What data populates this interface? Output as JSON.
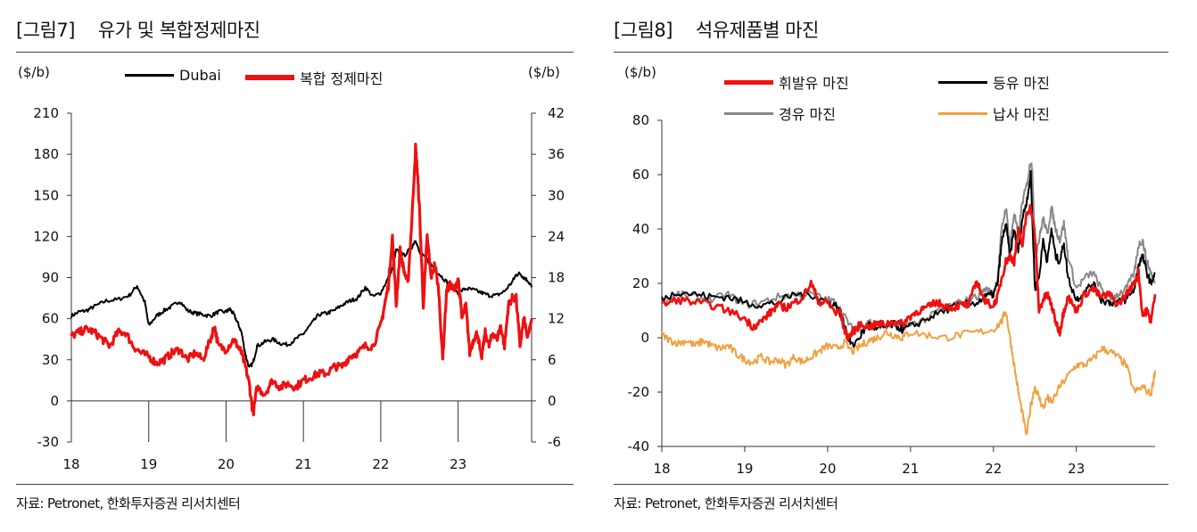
{
  "left_panel": {
    "fig_label": "[그림7]",
    "title": "유가 및 복합정제마진",
    "source": "자료: Petronet, 한화투자증권 리서치센터",
    "unit_left": "($/b)",
    "unit_right": "($/b)"
  },
  "right_panel": {
    "fig_label": "[그림8]",
    "title": "석유제품별 마진",
    "source": "자료: Petronet, 한화투자증권 리서치센터",
    "unit_left": "($/b)"
  },
  "chart_data": [
    {
      "type": "line",
      "x_ticks": [
        "18",
        "19",
        "20",
        "21",
        "22",
        "23"
      ],
      "y_left": {
        "ylim": [
          -30,
          210
        ],
        "ticks": [
          -30,
          0,
          30,
          60,
          90,
          120,
          150,
          180,
          210
        ],
        "tick_labels": [
          "-30",
          "0",
          "30",
          "60",
          "90",
          "120",
          "150",
          "180",
          "210"
        ]
      },
      "y_right": {
        "ylim": [
          -6,
          42
        ],
        "ticks": [
          -6,
          0,
          6,
          12,
          18,
          24,
          30,
          36,
          42
        ],
        "tick_labels": [
          "-6",
          "0",
          "6",
          "12",
          "18",
          "24",
          "30",
          "36",
          "42"
        ]
      },
      "xlim": [
        2018.0,
        2023.95
      ],
      "legend_placement": "top-center",
      "grid": false,
      "series": [
        {
          "name": "Dubai",
          "axis": "left",
          "color": "#000000",
          "x": [
            2018.0,
            2018.1,
            2018.2,
            2018.3,
            2018.45,
            2018.6,
            2018.75,
            2018.85,
            2018.95,
            2019.0,
            2019.1,
            2019.2,
            2019.3,
            2019.4,
            2019.5,
            2019.6,
            2019.7,
            2019.8,
            2019.9,
            2020.0,
            2020.05,
            2020.1,
            2020.15,
            2020.2,
            2020.25,
            2020.3,
            2020.35,
            2020.4,
            2020.5,
            2020.6,
            2020.7,
            2020.8,
            2020.9,
            2021.0,
            2021.1,
            2021.2,
            2021.3,
            2021.4,
            2021.5,
            2021.6,
            2021.7,
            2021.8,
            2021.9,
            2022.0,
            2022.1,
            2022.15,
            2022.2,
            2022.3,
            2022.4,
            2022.45,
            2022.5,
            2022.6,
            2022.7,
            2022.8,
            2022.9,
            2023.0,
            2023.1,
            2023.2,
            2023.3,
            2023.4,
            2023.5,
            2023.6,
            2023.7,
            2023.75,
            2023.8,
            2023.85,
            2023.9,
            2023.95
          ],
          "y": [
            62,
            65,
            66,
            69,
            73,
            74,
            77,
            84,
            72,
            55,
            62,
            66,
            69,
            73,
            66,
            64,
            63,
            62,
            65,
            65,
            67,
            63,
            57,
            50,
            34,
            24,
            28,
            40,
            43,
            45,
            42,
            41,
            45,
            49,
            56,
            63,
            64,
            66,
            70,
            73,
            75,
            83,
            76,
            79,
            90,
            96,
            110,
            106,
            112,
            118,
            108,
            103,
            96,
            90,
            84,
            79,
            82,
            81,
            79,
            77,
            77,
            80,
            87,
            92,
            93,
            90,
            88,
            83
          ]
        },
        {
          "name": "복합 정제마진",
          "axis": "right",
          "color": "#ee1111",
          "x": [
            2018.0,
            2018.1,
            2018.2,
            2018.3,
            2018.4,
            2018.5,
            2018.6,
            2018.7,
            2018.8,
            2018.9,
            2019.0,
            2019.1,
            2019.2,
            2019.3,
            2019.4,
            2019.5,
            2019.6,
            2019.7,
            2019.8,
            2019.85,
            2019.9,
            2020.0,
            2020.1,
            2020.15,
            2020.2,
            2020.25,
            2020.3,
            2020.35,
            2020.4,
            2020.5,
            2020.6,
            2020.7,
            2020.8,
            2020.9,
            2021.0,
            2021.1,
            2021.2,
            2021.3,
            2021.4,
            2021.5,
            2021.6,
            2021.7,
            2021.8,
            2021.9,
            2022.0,
            2022.05,
            2022.1,
            2022.15,
            2022.2,
            2022.25,
            2022.3,
            2022.35,
            2022.4,
            2022.45,
            2022.47,
            2022.5,
            2022.55,
            2022.6,
            2022.65,
            2022.7,
            2022.75,
            2022.8,
            2022.85,
            2022.9,
            2022.95,
            2023.0,
            2023.05,
            2023.1,
            2023.15,
            2023.2,
            2023.25,
            2023.3,
            2023.35,
            2023.4,
            2023.45,
            2023.5,
            2023.55,
            2023.6,
            2023.65,
            2023.7,
            2023.75,
            2023.8,
            2023.85,
            2023.9,
            2023.95
          ],
          "y": [
            9.5,
            10,
            10.5,
            10,
            9,
            8,
            10,
            10,
            8,
            7,
            6.5,
            5.5,
            6,
            7,
            7.5,
            6,
            7,
            6,
            9,
            11,
            8,
            7.5,
            9,
            8,
            7,
            5,
            2.5,
            -2,
            2,
            1,
            3,
            2,
            2.5,
            2,
            3,
            3.5,
            4,
            4,
            5,
            5,
            6.5,
            7,
            8,
            8,
            11,
            14,
            17,
            24,
            14,
            22,
            19,
            17,
            26,
            37,
            34,
            28,
            14,
            24,
            18,
            20,
            16,
            6,
            16,
            17,
            16,
            18,
            12,
            14,
            7,
            9,
            10,
            6,
            10,
            8,
            10,
            9,
            11,
            8,
            14,
            15,
            15,
            8,
            12,
            9,
            12
          ]
        }
      ]
    },
    {
      "type": "line",
      "x_ticks": [
        "18",
        "19",
        "20",
        "21",
        "22",
        "23"
      ],
      "y_left": {
        "ylim": [
          -40,
          80
        ],
        "ticks": [
          -40,
          -20,
          0,
          20,
          40,
          60,
          80
        ],
        "tick_labels": [
          "-40",
          "-20",
          "0",
          "20",
          "40",
          "60",
          "80"
        ]
      },
      "xlim": [
        2018.0,
        2023.95
      ],
      "legend_placement": "top",
      "grid": false,
      "series": [
        {
          "name": "휘발유 마진",
          "color": "#ee1111",
          "x": [
            2018.0,
            2018.2,
            2018.4,
            2018.6,
            2018.8,
            2019.0,
            2019.1,
            2019.2,
            2019.3,
            2019.4,
            2019.5,
            2019.6,
            2019.7,
            2019.8,
            2019.9,
            2020.0,
            2020.1,
            2020.15,
            2020.2,
            2020.25,
            2020.3,
            2020.4,
            2020.5,
            2020.6,
            2020.7,
            2020.8,
            2020.9,
            2021.0,
            2021.1,
            2021.2,
            2021.3,
            2021.4,
            2021.5,
            2021.6,
            2021.7,
            2021.8,
            2021.9,
            2022.0,
            2022.05,
            2022.1,
            2022.15,
            2022.2,
            2022.25,
            2022.3,
            2022.35,
            2022.4,
            2022.45,
            2022.5,
            2022.55,
            2022.6,
            2022.65,
            2022.7,
            2022.75,
            2022.8,
            2022.85,
            2022.9,
            2023.0,
            2023.1,
            2023.2,
            2023.3,
            2023.4,
            2023.5,
            2023.6,
            2023.7,
            2023.75,
            2023.8,
            2023.85,
            2023.9,
            2023.95
          ],
          "y": [
            12,
            14,
            13,
            12,
            10,
            7,
            4,
            6,
            9,
            12,
            11,
            13,
            15,
            20,
            13,
            13,
            9,
            10,
            3,
            0,
            2,
            5,
            4,
            5,
            5,
            6,
            5,
            8,
            10,
            11,
            13,
            12,
            11,
            12,
            12,
            21,
            13,
            12,
            15,
            22,
            28,
            30,
            28,
            40,
            34,
            46,
            48,
            38,
            10,
            14,
            16,
            12,
            6,
            2,
            10,
            15,
            10,
            16,
            18,
            15,
            16,
            12,
            16,
            20,
            24,
            8,
            10,
            6,
            16
          ]
        },
        {
          "name": "등유 마진",
          "color": "#000000",
          "x": [
            2018.0,
            2018.2,
            2018.4,
            2018.6,
            2018.8,
            2019.0,
            2019.2,
            2019.4,
            2019.6,
            2019.8,
            2020.0,
            2020.1,
            2020.15,
            2020.2,
            2020.25,
            2020.3,
            2020.4,
            2020.5,
            2020.6,
            2020.7,
            2020.8,
            2020.9,
            2021.0,
            2021.2,
            2021.4,
            2021.6,
            2021.8,
            2021.9,
            2022.0,
            2022.05,
            2022.1,
            2022.15,
            2022.2,
            2022.25,
            2022.3,
            2022.35,
            2022.4,
            2022.45,
            2022.5,
            2022.55,
            2022.6,
            2022.65,
            2022.7,
            2022.75,
            2022.8,
            2022.85,
            2022.9,
            2023.0,
            2023.1,
            2023.2,
            2023.3,
            2023.4,
            2023.5,
            2023.6,
            2023.7,
            2023.75,
            2023.8,
            2023.85,
            2023.9,
            2023.95
          ],
          "y": [
            14,
            17,
            16,
            15,
            15,
            13,
            12,
            13,
            16,
            16,
            13,
            12,
            9,
            5,
            0,
            -3,
            1,
            5,
            3,
            4,
            5,
            3,
            4,
            7,
            10,
            12,
            13,
            15,
            16,
            20,
            35,
            42,
            30,
            40,
            32,
            44,
            50,
            60,
            18,
            22,
            36,
            28,
            40,
            30,
            28,
            35,
            22,
            14,
            17,
            20,
            14,
            13,
            13,
            14,
            18,
            27,
            30,
            24,
            20,
            24
          ]
        },
        {
          "name": "경유 마진",
          "color": "#888888",
          "x": [
            2018.0,
            2018.2,
            2018.4,
            2018.6,
            2018.8,
            2019.0,
            2019.2,
            2019.4,
            2019.6,
            2019.8,
            2020.0,
            2020.1,
            2020.2,
            2020.3,
            2020.4,
            2020.5,
            2020.6,
            2020.7,
            2020.8,
            2020.9,
            2021.0,
            2021.2,
            2021.4,
            2021.6,
            2021.8,
            2021.9,
            2022.0,
            2022.05,
            2022.1,
            2022.15,
            2022.2,
            2022.25,
            2022.3,
            2022.35,
            2022.4,
            2022.45,
            2022.47,
            2022.5,
            2022.55,
            2022.6,
            2022.65,
            2022.7,
            2022.75,
            2022.8,
            2022.85,
            2022.9,
            2023.0,
            2023.1,
            2023.2,
            2023.3,
            2023.4,
            2023.5,
            2023.6,
            2023.7,
            2023.75,
            2023.8,
            2023.85,
            2023.9,
            2023.95
          ],
          "y": [
            13,
            16,
            15,
            14,
            16,
            12,
            13,
            15,
            16,
            16,
            14,
            13,
            8,
            3,
            3,
            6,
            5,
            4,
            5,
            4,
            5,
            7,
            11,
            13,
            15,
            18,
            16,
            22,
            40,
            48,
            34,
            46,
            38,
            50,
            56,
            65,
            62,
            30,
            36,
            44,
            38,
            48,
            40,
            36,
            42,
            30,
            18,
            22,
            24,
            18,
            14,
            16,
            18,
            24,
            34,
            36,
            28,
            24,
            20
          ]
        },
        {
          "name": "납사 마진",
          "color": "#f2a040",
          "x": [
            2018.0,
            2018.1,
            2018.2,
            2018.3,
            2018.4,
            2018.5,
            2018.6,
            2018.7,
            2018.8,
            2018.9,
            2019.0,
            2019.1,
            2019.2,
            2019.3,
            2019.4,
            2019.5,
            2019.6,
            2019.7,
            2019.8,
            2019.9,
            2020.0,
            2020.1,
            2020.2,
            2020.3,
            2020.4,
            2020.5,
            2020.6,
            2020.7,
            2020.8,
            2020.9,
            2021.0,
            2021.2,
            2021.4,
            2021.6,
            2021.8,
            2022.0,
            2022.1,
            2022.15,
            2022.2,
            2022.25,
            2022.3,
            2022.35,
            2022.4,
            2022.45,
            2022.5,
            2022.55,
            2022.6,
            2022.65,
            2022.7,
            2022.8,
            2022.9,
            2023.0,
            2023.1,
            2023.2,
            2023.3,
            2023.4,
            2023.5,
            2023.6,
            2023.7,
            2023.8,
            2023.9,
            2023.95
          ],
          "y": [
            1,
            -1,
            -2,
            -1,
            -3,
            -1,
            -3,
            -4,
            -3,
            -6,
            -8,
            -9,
            -7,
            -9,
            -8,
            -10,
            -7,
            -9,
            -7,
            -5,
            -3,
            -4,
            -2,
            -5,
            -3,
            -1,
            0,
            2,
            1,
            0,
            2,
            1,
            0,
            1,
            2,
            3,
            6,
            10,
            0,
            -10,
            -20,
            -28,
            -36,
            -25,
            -18,
            -22,
            -26,
            -22,
            -24,
            -18,
            -14,
            -10,
            -10,
            -8,
            -4,
            -5,
            -7,
            -10,
            -20,
            -18,
            -21,
            -12
          ]
        }
      ]
    }
  ]
}
